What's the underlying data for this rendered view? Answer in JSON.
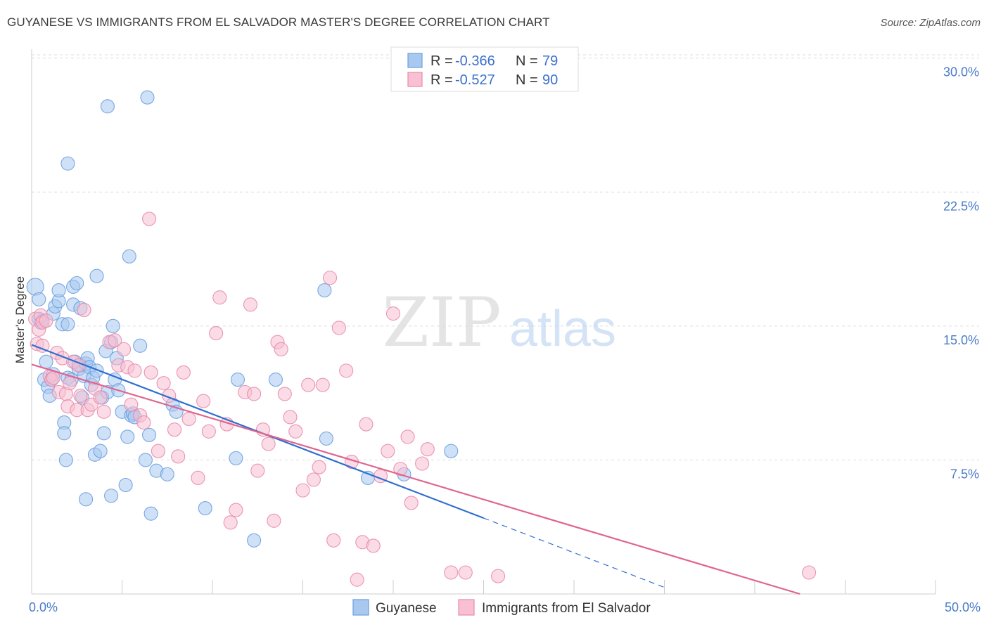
{
  "title": "GUYANESE VS IMMIGRANTS FROM EL SALVADOR MASTER'S DEGREE CORRELATION CHART",
  "source": "Source: ZipAtlas.com",
  "watermark": {
    "zip": "ZIP",
    "atlas": "atlas"
  },
  "colors": {
    "guyanese_fill": "#a8c8f0",
    "guyanese_stroke": "#6a9ee0",
    "guyanese_line": "#2f6fd0",
    "salvador_fill": "#f8c0d2",
    "salvador_stroke": "#e88aaa",
    "salvador_line": "#e0648f",
    "tick_label": "#4a7bc8",
    "grid": "#dddddd"
  },
  "legend": {
    "rows": [
      {
        "r_label": "R = ",
        "r_value": "-0.366",
        "n_label": "N = ",
        "n_value": "79"
      },
      {
        "r_label": "R = ",
        "r_value": "-0.527",
        "n_label": "N = ",
        "n_value": "90"
      }
    ]
  },
  "chart_data": {
    "type": "scatter",
    "title": "GUYANESE VS IMMIGRANTS FROM EL SALVADOR MASTER'S DEGREE CORRELATION CHART",
    "xlabel": "",
    "ylabel": "Master's Degree",
    "xlim": [
      0,
      50
    ],
    "ylim": [
      0,
      30.5
    ],
    "x_tick_labels": [
      "0.0%",
      "50.0%"
    ],
    "y_ticks": [
      7.5,
      15.0,
      22.5,
      30.0
    ],
    "y_tick_labels": [
      "7.5%",
      "15.0%",
      "22.5%",
      "30.0%"
    ],
    "grid": "horizontal dashed",
    "legend_placement": "top-center",
    "series": [
      {
        "name": "Guyanese",
        "points": [
          [
            0.2,
            17.2
          ],
          [
            0.4,
            15.4
          ],
          [
            0.5,
            15.2
          ],
          [
            0.4,
            16.5
          ],
          [
            0.6,
            15.3
          ],
          [
            0.8,
            13.0
          ],
          [
            0.7,
            12.0
          ],
          [
            0.9,
            11.6
          ],
          [
            1.0,
            11.1
          ],
          [
            1.1,
            12.0
          ],
          [
            1.2,
            12.3
          ],
          [
            1.2,
            15.7
          ],
          [
            1.3,
            16.1
          ],
          [
            1.5,
            16.4
          ],
          [
            1.5,
            17.0
          ],
          [
            1.7,
            15.1
          ],
          [
            1.8,
            9.6
          ],
          [
            1.8,
            9.0
          ],
          [
            1.9,
            7.5
          ],
          [
            2.0,
            15.1
          ],
          [
            2.0,
            12.1
          ],
          [
            2.2,
            12.0
          ],
          [
            2.3,
            16.2
          ],
          [
            2.3,
            17.2
          ],
          [
            2.4,
            13.0
          ],
          [
            2.5,
            17.4
          ],
          [
            2.6,
            12.6
          ],
          [
            2.7,
            16.0
          ],
          [
            2.7,
            12.8
          ],
          [
            2.8,
            11.0
          ],
          [
            2.9,
            12.2
          ],
          [
            3.0,
            12.9
          ],
          [
            3.1,
            13.2
          ],
          [
            3.2,
            12.7
          ],
          [
            3.3,
            11.7
          ],
          [
            3.4,
            12.1
          ],
          [
            3.5,
            7.8
          ],
          [
            3.6,
            12.5
          ],
          [
            3.6,
            17.8
          ],
          [
            3.8,
            8.0
          ],
          [
            3.9,
            11.0
          ],
          [
            4.0,
            9.0
          ],
          [
            4.1,
            13.6
          ],
          [
            4.2,
            11.3
          ],
          [
            4.4,
            14.1
          ],
          [
            4.5,
            15.0
          ],
          [
            4.6,
            12.0
          ],
          [
            4.7,
            13.2
          ],
          [
            4.8,
            11.4
          ],
          [
            5.0,
            10.2
          ],
          [
            5.2,
            6.1
          ],
          [
            5.3,
            8.8
          ],
          [
            5.5,
            10.0
          ],
          [
            5.6,
            10.1
          ],
          [
            5.7,
            9.9
          ],
          [
            6.0,
            13.9
          ],
          [
            6.3,
            7.5
          ],
          [
            6.5,
            8.9
          ],
          [
            6.6,
            4.5
          ],
          [
            6.9,
            6.9
          ],
          [
            7.5,
            6.7
          ],
          [
            7.8,
            10.6
          ],
          [
            8.0,
            10.2
          ],
          [
            9.6,
            4.8
          ],
          [
            11.3,
            7.6
          ],
          [
            11.4,
            12.0
          ],
          [
            12.3,
            3.0
          ],
          [
            13.5,
            12.0
          ],
          [
            16.2,
            17.0
          ],
          [
            16.3,
            8.7
          ],
          [
            18.6,
            6.5
          ],
          [
            20.6,
            6.7
          ],
          [
            23.2,
            8.0
          ],
          [
            4.2,
            27.3
          ],
          [
            6.4,
            27.8
          ],
          [
            2.0,
            24.1
          ],
          [
            5.4,
            18.9
          ],
          [
            3.0,
            5.3
          ],
          [
            4.4,
            5.5
          ]
        ]
      },
      {
        "name": "Immigrants from El Salvador",
        "points": [
          [
            0.2,
            15.4
          ],
          [
            0.3,
            14.0
          ],
          [
            0.4,
            14.8
          ],
          [
            0.5,
            15.6
          ],
          [
            0.6,
            15.2
          ],
          [
            0.8,
            15.3
          ],
          [
            1.0,
            12.2
          ],
          [
            1.1,
            12.0
          ],
          [
            1.2,
            12.1
          ],
          [
            1.4,
            13.5
          ],
          [
            1.5,
            11.3
          ],
          [
            1.7,
            13.2
          ],
          [
            1.9,
            11.2
          ],
          [
            2.0,
            10.5
          ],
          [
            2.1,
            11.8
          ],
          [
            2.3,
            13.0
          ],
          [
            2.5,
            10.3
          ],
          [
            2.6,
            12.8
          ],
          [
            2.7,
            11.1
          ],
          [
            2.9,
            15.9
          ],
          [
            3.1,
            10.3
          ],
          [
            3.3,
            10.6
          ],
          [
            3.5,
            11.5
          ],
          [
            3.8,
            11.0
          ],
          [
            4.0,
            10.2
          ],
          [
            4.3,
            14.1
          ],
          [
            4.6,
            14.2
          ],
          [
            4.8,
            12.8
          ],
          [
            5.1,
            13.7
          ],
          [
            5.3,
            12.7
          ],
          [
            5.5,
            10.6
          ],
          [
            5.7,
            12.5
          ],
          [
            6.0,
            10.0
          ],
          [
            6.2,
            9.6
          ],
          [
            6.5,
            21.0
          ],
          [
            6.6,
            12.4
          ],
          [
            7.0,
            8.0
          ],
          [
            7.3,
            11.8
          ],
          [
            7.6,
            11.1
          ],
          [
            7.9,
            9.2
          ],
          [
            8.1,
            7.7
          ],
          [
            8.4,
            12.4
          ],
          [
            8.7,
            9.8
          ],
          [
            9.2,
            6.5
          ],
          [
            9.5,
            10.8
          ],
          [
            9.8,
            9.1
          ],
          [
            10.2,
            14.6
          ],
          [
            10.4,
            16.6
          ],
          [
            10.8,
            9.5
          ],
          [
            11.0,
            4.0
          ],
          [
            11.3,
            4.7
          ],
          [
            11.8,
            11.3
          ],
          [
            12.1,
            16.2
          ],
          [
            12.3,
            11.2
          ],
          [
            12.5,
            6.9
          ],
          [
            12.8,
            9.2
          ],
          [
            13.1,
            8.4
          ],
          [
            13.4,
            4.1
          ],
          [
            13.6,
            14.1
          ],
          [
            13.8,
            13.7
          ],
          [
            14.0,
            11.2
          ],
          [
            14.3,
            9.9
          ],
          [
            14.6,
            9.1
          ],
          [
            15.0,
            5.8
          ],
          [
            15.3,
            11.7
          ],
          [
            15.6,
            6.4
          ],
          [
            15.9,
            7.1
          ],
          [
            16.1,
            11.7
          ],
          [
            16.5,
            17.7
          ],
          [
            16.7,
            3.0
          ],
          [
            17.0,
            14.9
          ],
          [
            17.4,
            12.5
          ],
          [
            17.7,
            7.4
          ],
          [
            18.0,
            0.8
          ],
          [
            18.3,
            2.9
          ],
          [
            18.5,
            9.5
          ],
          [
            18.9,
            2.7
          ],
          [
            19.3,
            6.6
          ],
          [
            19.7,
            8.0
          ],
          [
            20.0,
            15.7
          ],
          [
            20.4,
            7.0
          ],
          [
            20.8,
            8.8
          ],
          [
            21.0,
            5.1
          ],
          [
            21.6,
            7.3
          ],
          [
            21.9,
            8.1
          ],
          [
            23.2,
            1.2
          ],
          [
            24.0,
            1.2
          ],
          [
            25.8,
            1.0
          ],
          [
            43.0,
            1.2
          ],
          [
            0.6,
            13.9
          ]
        ]
      }
    ],
    "trend_lines": [
      {
        "series": "Guyanese",
        "x": [
          0,
          25
        ],
        "y": [
          13.95,
          4.25
        ],
        "dashed_extension_x": [
          25,
          35
        ]
      },
      {
        "series": "Immigrants from El Salvador",
        "x": [
          0,
          42.5
        ],
        "y": [
          12.85,
          0.0
        ]
      }
    ]
  },
  "bottom_legend": {
    "items": [
      "Guyanese",
      "Immigrants from El Salvador"
    ]
  }
}
